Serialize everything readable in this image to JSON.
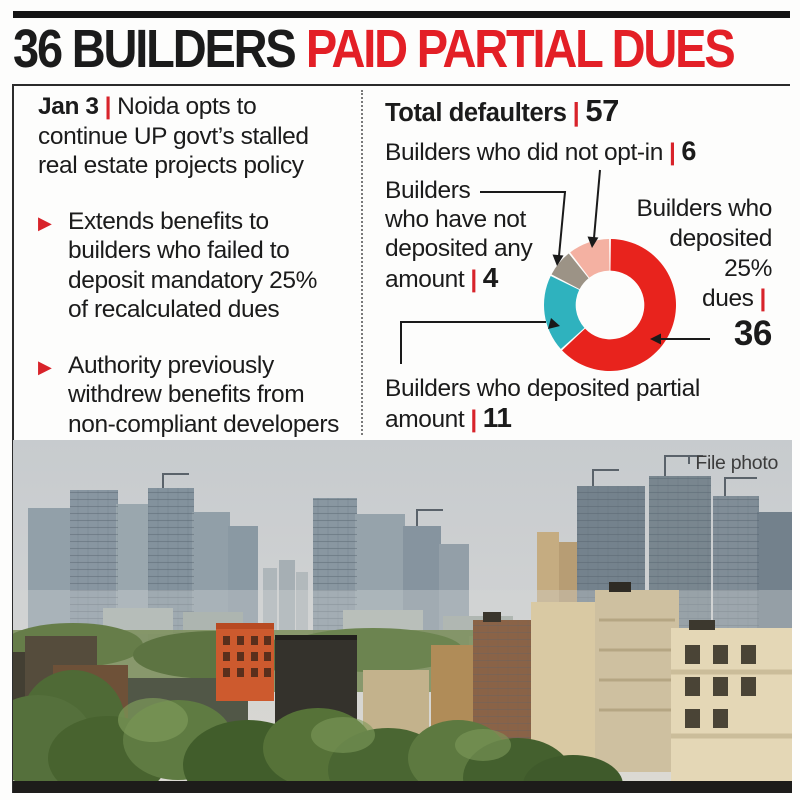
{
  "headline": {
    "black": "36 BUILDERS",
    "red": "PAID PARTIAL DUES"
  },
  "separators": {
    "pipe": "|"
  },
  "icons": {
    "bullet": "▶"
  },
  "left_panel": {
    "date": "Jan 3",
    "intro_text": "Noida opts to\ncontinue UP govt’s stalled\nreal estate projects policy",
    "bullet_1": "Extends benefits to\nbuilders who failed to\ndeposit mandatory 25%\nof recalculated dues",
    "bullet_2": "Authority previously\nwithdrew benefits from\nnon-compliant developers"
  },
  "right_panel": {
    "total_label": "Total defaulters",
    "total_value": "57",
    "optin_label": "Builders who did not opt-in",
    "optin_value": "6",
    "no_deposit_label": "Builders\nwho have not\ndeposited any\namount",
    "no_deposit_value": "4",
    "deposited25_label": "Builders who\ndeposited\n25%\ndues",
    "deposited25_value": "36",
    "partial_label": "Builders who deposited partial\namount",
    "partial_value": "11"
  },
  "photo": {
    "caption": "File photo"
  },
  "chart_data": {
    "type": "pie",
    "subtype": "donut",
    "title": "Total defaulters | 57",
    "total": 57,
    "start_angle_deg": 0,
    "direction": "clockwise",
    "hole_ratio": 0.52,
    "segments": [
      {
        "label": "Builders who deposited 25% dues",
        "value": 36,
        "color": "#e8231d"
      },
      {
        "label": "Builders who deposited partial amount",
        "value": 11,
        "color": "#2fb2be"
      },
      {
        "label": "Builders who have not deposited any amount",
        "value": 4,
        "color": "#9c9386"
      },
      {
        "label": "Builders who did not opt-in",
        "value": 6,
        "color": "#f4b1a2"
      }
    ]
  },
  "colors": {
    "headline_red": "#e31f26",
    "accent_red": "#d8232a",
    "text": "#1b1b1b",
    "bar_black": "#141414"
  }
}
